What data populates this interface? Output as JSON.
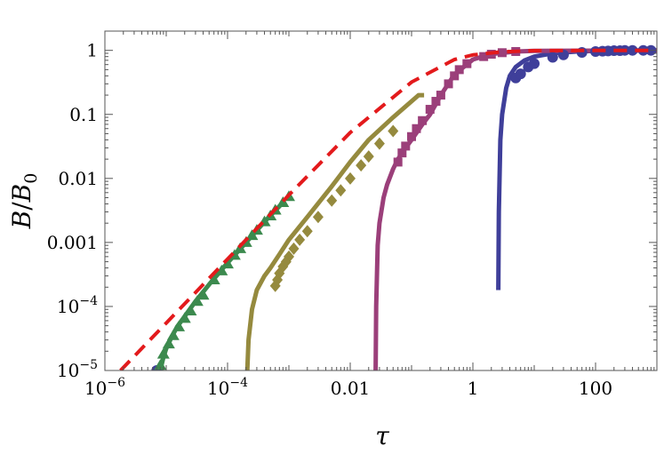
{
  "chart_data": {
    "type": "line",
    "title": "",
    "xlabel": "τ",
    "ylabel_parts": {
      "b": "B",
      "slash": "/",
      "b0": "B",
      "sub": "0"
    },
    "x_scale": "log",
    "y_scale": "log",
    "xlim": [
      1e-06,
      1000
    ],
    "ylim": [
      1e-05,
      2
    ],
    "grid": false,
    "legend": "none",
    "x_ticks": [
      {
        "value": 1e-06,
        "base": "10",
        "exp": "−6"
      },
      {
        "value": 0.0001,
        "base": "10",
        "exp": "−4"
      },
      {
        "value": 0.01,
        "text": "0.01"
      },
      {
        "value": 1,
        "text": "1"
      },
      {
        "value": 100,
        "text": "100"
      }
    ],
    "y_ticks": [
      {
        "value": 1,
        "text": "1"
      },
      {
        "value": 0.1,
        "text": "0.1"
      },
      {
        "value": 0.01,
        "text": "0.01"
      },
      {
        "value": 0.001,
        "text": "0.001"
      },
      {
        "value": 0.0001,
        "base": "10",
        "exp": "−4"
      },
      {
        "value": 1e-05,
        "base": "10",
        "exp": "−5"
      }
    ],
    "series": [
      {
        "color": "#e31a1c",
        "style": "dashed",
        "markers": "none",
        "x": [
          1.8e-06,
          1e-05,
          0.0001,
          0.001,
          0.01,
          0.1,
          0.5,
          1,
          3,
          10,
          100,
          1000
        ],
        "y": [
          1e-05,
          5.5e-05,
          0.00055,
          0.0055,
          0.052,
          0.32,
          0.72,
          0.85,
          0.95,
          0.99,
          1.0,
          1.0
        ]
      },
      {
        "color": "#3f3f9a",
        "style": "solid",
        "markers": "circle",
        "x": [
          2.6,
          2.65,
          2.8,
          3,
          3.5,
          4,
          5,
          7,
          10,
          20,
          50,
          100,
          200,
          300,
          1000
        ],
        "y": [
          0.00018,
          0.003,
          0.04,
          0.1,
          0.26,
          0.4,
          0.55,
          0.7,
          0.8,
          0.9,
          0.96,
          0.98,
          0.99,
          1.0,
          1.0
        ],
        "marker_x": [
          5,
          6,
          8,
          10,
          20,
          30,
          60,
          100,
          130,
          160,
          200,
          250,
          300,
          400,
          600,
          800
        ],
        "marker_y": [
          0.37,
          0.43,
          0.55,
          0.62,
          0.78,
          0.85,
          0.93,
          0.96,
          0.97,
          0.98,
          0.99,
          0.99,
          1.0,
          1.0,
          1.0,
          1.0
        ],
        "marker_x2": [
          7e-06
        ],
        "marker_y2": [
          1e-05
        ]
      },
      {
        "color": "#9b3f7a",
        "style": "solid",
        "markers": "square",
        "x": [
          0.026,
          0.0265,
          0.028,
          0.03,
          0.035,
          0.04,
          0.05,
          0.06,
          0.08,
          0.1,
          0.15,
          0.2,
          0.3,
          0.5,
          1,
          2,
          5,
          10,
          1000
        ],
        "y": [
          1e-05,
          0.0001,
          0.0009,
          0.002,
          0.005,
          0.008,
          0.014,
          0.02,
          0.03,
          0.04,
          0.07,
          0.1,
          0.2,
          0.42,
          0.72,
          0.88,
          0.96,
          0.98,
          1.0
        ],
        "marker_x": [
          0.06,
          0.07,
          0.08,
          0.1,
          0.12,
          0.15,
          0.2,
          0.25,
          0.3,
          0.4,
          0.5,
          0.6,
          0.8,
          1.5,
          2,
          3,
          5
        ],
        "marker_y": [
          0.018,
          0.025,
          0.032,
          0.045,
          0.06,
          0.08,
          0.12,
          0.16,
          0.2,
          0.3,
          0.4,
          0.5,
          0.62,
          0.8,
          0.87,
          0.92,
          0.96
        ]
      },
      {
        "color": "#958a3e",
        "style": "solid",
        "markers": "diamond",
        "x": [
          0.00021,
          0.00022,
          0.00025,
          0.0003,
          0.0004,
          0.0005,
          0.0007,
          0.001,
          0.002,
          0.005,
          0.01,
          0.02,
          0.05,
          0.1,
          0.13,
          0.16
        ],
        "y": [
          1e-05,
          3e-05,
          9e-05,
          0.00018,
          0.0003,
          0.0004,
          0.00065,
          0.0011,
          0.0025,
          0.0075,
          0.018,
          0.04,
          0.09,
          0.16,
          0.2,
          0.2
        ],
        "marker_x": [
          0.0006,
          0.00065,
          0.0007,
          0.0008,
          0.0009,
          0.001,
          0.0012,
          0.0015,
          0.002,
          0.003,
          0.005,
          0.007,
          0.01,
          0.015,
          0.02,
          0.03,
          0.05
        ],
        "marker_y": [
          0.00021,
          0.00026,
          0.00033,
          0.00042,
          0.0005,
          0.0006,
          0.0008,
          0.0011,
          0.0015,
          0.0025,
          0.0045,
          0.0065,
          0.01,
          0.016,
          0.022,
          0.035,
          0.055
        ]
      },
      {
        "color": "#3c8a4e",
        "style": "solid",
        "markers": "triangle",
        "x": [
          8e-06,
          9e-06,
          1e-05,
          1.2e-05,
          1.5e-05,
          2e-05,
          3e-05,
          5e-05,
          0.0001,
          0.0002,
          0.0004,
          0.0008
        ],
        "y": [
          1e-05,
          1.6e-05,
          2.2e-05,
          3.2e-05,
          4.8e-05,
          7e-05,
          0.00012,
          0.00022,
          0.00048,
          0.001,
          0.0021,
          0.0042
        ],
        "marker_x": [
          8e-06,
          9e-06,
          1.1e-05,
          1.3e-05,
          1.6e-05,
          2e-05,
          2.5e-05,
          3.2e-05,
          4e-05,
          6e-05,
          8e-05,
          0.0001,
          0.00013,
          0.00016,
          0.0002,
          0.00025,
          0.0003,
          0.0004,
          0.0005,
          0.0006,
          0.0008,
          0.001
        ],
        "marker_y": [
          1.2e-05,
          1.8e-05,
          2.6e-05,
          3.5e-05,
          4.8e-05,
          6.5e-05,
          8.5e-05,
          0.00012,
          0.00015,
          0.00026,
          0.00036,
          0.00046,
          0.00063,
          0.0008,
          0.001,
          0.00128,
          0.00155,
          0.0021,
          0.0026,
          0.0032,
          0.0042,
          0.0052
        ]
      }
    ]
  }
}
